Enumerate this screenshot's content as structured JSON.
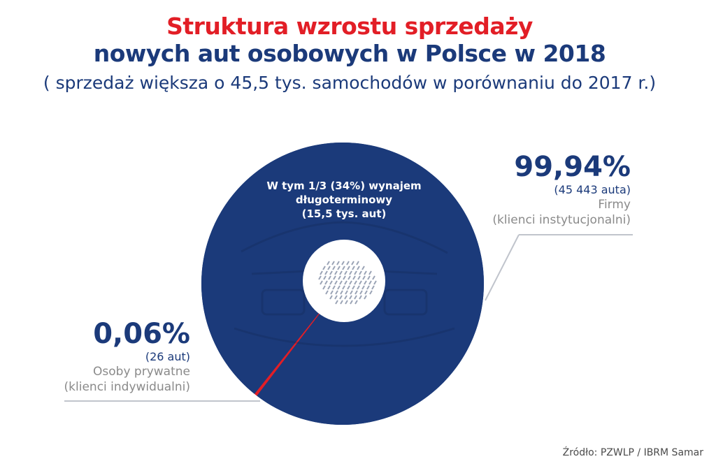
{
  "header": {
    "title_line1": "Struktura wzrostu sprzedaży",
    "title_line2": "nowych aut osobowych w Polsce w 2018",
    "subtitle": "( sprzedaż większa o 45,5 tys. samochodów w porównaniu do 2017 r.)"
  },
  "chart_data": {
    "type": "pie",
    "title": "Struktura wzrostu sprzedaży nowych aut osobowych w Polsce w 2018",
    "subtitle": "( sprzedaż większa o 45,5 tys. samochodów w porównaniu do 2017 r.)",
    "categories": [
      "Firmy",
      "Osoby prywatne"
    ],
    "values": [
      99.94,
      0.06
    ],
    "counts": [
      45443,
      26
    ],
    "annotation": "W tym 1/3 (34%) wynajem długoterminowy (15,5 tys. aut)",
    "slices": [
      {
        "percent_label": "99,94%",
        "count_label": "(45 443 auta)",
        "category": "Firmy",
        "subcategory": "(klienci instytucjonalni)",
        "value": 99.94,
        "color": "#1b3a7a"
      },
      {
        "percent_label": "0,06%",
        "count_label": "(26 aut)",
        "category": "Osoby prywatne",
        "subcategory": "(klienci indywidualni)",
        "value": 0.06,
        "color": "#e21e26"
      }
    ],
    "inner_label": {
      "line1": "W tym 1/3 (34%) wynajem",
      "line2": "długoterminowy",
      "line3": "(15,5 tys. aut)"
    }
  },
  "footer": {
    "source": "Źródło: PZWLP / IBRM Samar"
  }
}
